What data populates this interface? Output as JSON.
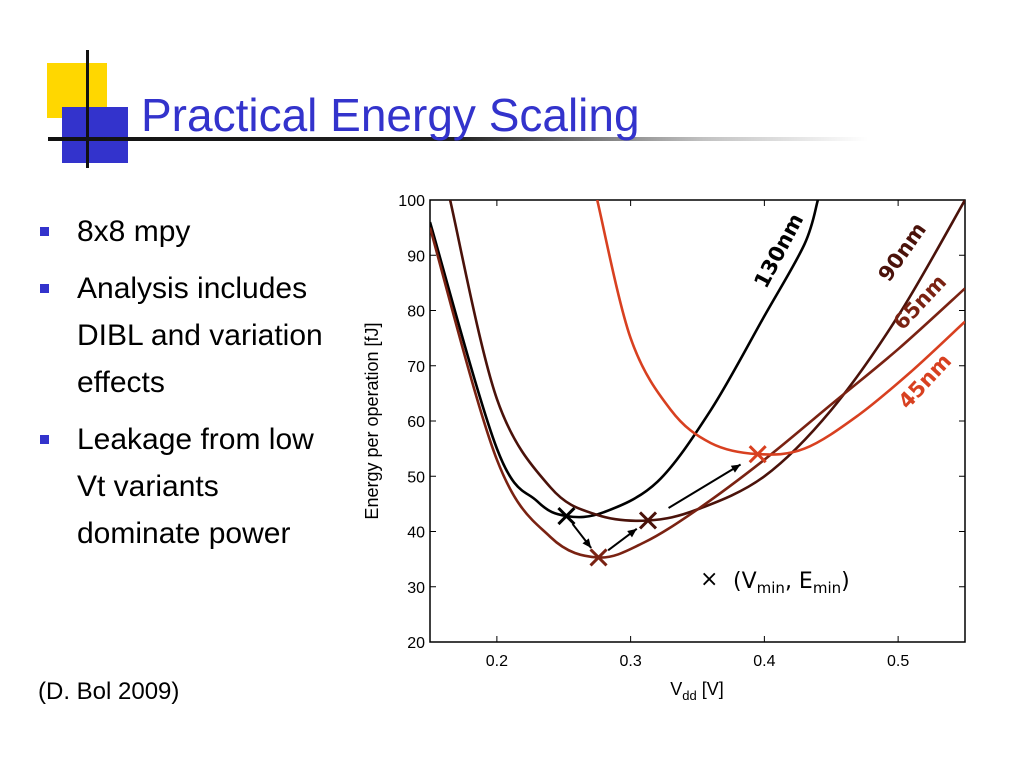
{
  "slide": {
    "title": "Practical Energy Scaling",
    "bullets": [
      "8x8 mpy",
      "Analysis includes DIBL and variation effects",
      "Leakage from low Vt variants dominate power"
    ],
    "citation": "(D. Bol 2009)"
  },
  "colors": {
    "title": "#3333cc",
    "accent_yellow": "#ffd700",
    "accent_blue": "#3333cc"
  },
  "chart_data": {
    "type": "line",
    "title": "",
    "xlabel": "V",
    "xlabel_sub": "dd",
    "xlabel_unit": " [V]",
    "ylabel": "Energy per operation [fJ]",
    "xlim": [
      0.15,
      0.55
    ],
    "ylim": [
      20,
      100
    ],
    "x_ticks": [
      0.2,
      0.3,
      0.4,
      0.5
    ],
    "y_ticks": [
      20,
      30,
      40,
      50,
      60,
      70,
      80,
      90,
      100
    ],
    "grid": false,
    "series": [
      {
        "name": "130nm",
        "color": "#000000",
        "points": [
          [
            0.15,
            96
          ],
          [
            0.2,
            55
          ],
          [
            0.23,
            45.5
          ],
          [
            0.252,
            42.8
          ],
          [
            0.28,
            43.5
          ],
          [
            0.32,
            49
          ],
          [
            0.36,
            62
          ],
          [
            0.4,
            79
          ],
          [
            0.43,
            92
          ],
          [
            0.44,
            100
          ]
        ],
        "vmin": [
          0.252,
          42.8
        ]
      },
      {
        "name": "90nm",
        "color": "#4a120a",
        "points": [
          [
            0.165,
            100
          ],
          [
            0.2,
            64
          ],
          [
            0.24,
            48
          ],
          [
            0.275,
            43
          ],
          [
            0.313,
            42
          ],
          [
            0.35,
            44
          ],
          [
            0.4,
            50
          ],
          [
            0.45,
            62
          ],
          [
            0.5,
            79
          ],
          [
            0.55,
            100
          ]
        ],
        "vmin": [
          0.313,
          42
        ]
      },
      {
        "name": "65nm",
        "color": "#7a2212",
        "points": [
          [
            0.15,
            95
          ],
          [
            0.2,
            53
          ],
          [
            0.24,
            39
          ],
          [
            0.276,
            35.3
          ],
          [
            0.31,
            38
          ],
          [
            0.35,
            44
          ],
          [
            0.4,
            53
          ],
          [
            0.45,
            63
          ],
          [
            0.5,
            73
          ],
          [
            0.55,
            84
          ]
        ],
        "vmin": [
          0.276,
          35.3
        ]
      },
      {
        "name": "45nm",
        "color": "#d84020",
        "points": [
          [
            0.275,
            100
          ],
          [
            0.3,
            75
          ],
          [
            0.33,
            62
          ],
          [
            0.36,
            56
          ],
          [
            0.395,
            54
          ],
          [
            0.43,
            55
          ],
          [
            0.47,
            61
          ],
          [
            0.51,
            69
          ],
          [
            0.55,
            78
          ]
        ],
        "vmin": [
          0.395,
          54
        ]
      }
    ],
    "legend": {
      "marker": "×",
      "text": "(V",
      "sub1": "min",
      "sep": ", E",
      "sub2": "min",
      "close": ")"
    }
  }
}
